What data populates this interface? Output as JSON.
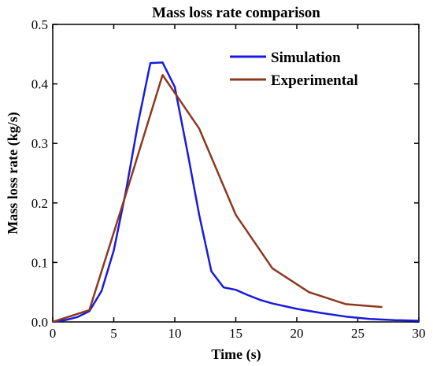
{
  "chart_data": {
    "type": "line",
    "title": "Mass loss rate comparison",
    "xlabel": "Time (s)",
    "ylabel": "Mass loss rate (kg/s)",
    "xlim": [
      0,
      30
    ],
    "ylim": [
      0,
      0.5
    ],
    "x_ticks": [
      0,
      5,
      10,
      15,
      20,
      25,
      30
    ],
    "y_ticks": [
      0.0,
      0.1,
      0.2,
      0.3,
      0.4,
      0.5
    ],
    "x_tick_labels": [
      "0",
      "5",
      "10",
      "15",
      "20",
      "25",
      "30"
    ],
    "y_tick_labels": [
      "0.0",
      "0.1",
      "0.2",
      "0.3",
      "0.4",
      "0.5"
    ],
    "grid": false,
    "legend_position": "top-right",
    "series": [
      {
        "name": "Simulation",
        "color": "#1a1adb",
        "x": [
          0,
          1,
          2,
          3,
          4,
          5,
          6,
          7,
          8,
          9,
          10,
          11,
          12,
          13,
          14,
          15,
          16,
          17,
          18,
          20,
          22,
          24,
          26,
          28,
          30
        ],
        "y": [
          0.0,
          0.003,
          0.008,
          0.018,
          0.052,
          0.12,
          0.22,
          0.335,
          0.435,
          0.436,
          0.395,
          0.29,
          0.18,
          0.085,
          0.058,
          0.054,
          0.045,
          0.037,
          0.031,
          0.022,
          0.015,
          0.009,
          0.005,
          0.003,
          0.002
        ]
      },
      {
        "name": "Experimental",
        "color": "#8b3a1e",
        "x": [
          0,
          3,
          6,
          9,
          12,
          15,
          18,
          21,
          24,
          27
        ],
        "y": [
          0.0,
          0.02,
          0.215,
          0.415,
          0.325,
          0.18,
          0.09,
          0.05,
          0.03,
          0.025
        ]
      }
    ]
  }
}
